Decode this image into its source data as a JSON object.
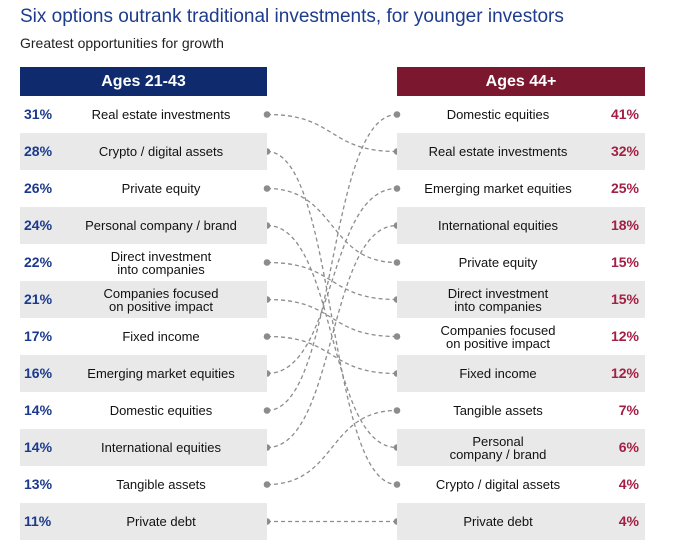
{
  "title": "Six options outrank traditional investments, for younger investors",
  "subtitle": "Greatest opportunities for growth",
  "colors": {
    "left_header": "#0f2b6e",
    "right_header": "#7b1830",
    "left_value": "#1b3a8c",
    "right_value": "#a31f43",
    "connector": "#8c8c8c"
  },
  "chart_data": {
    "type": "table",
    "title": "Six options outrank traditional investments, for younger investors",
    "subtitle": "Greatest opportunities for growth",
    "left": {
      "header": "Ages 21-43",
      "rows": [
        {
          "value": 31,
          "display": "31%",
          "label": "Real estate investments"
        },
        {
          "value": 28,
          "display": "28%",
          "label": "Crypto / digital assets"
        },
        {
          "value": 26,
          "display": "26%",
          "label": "Private equity"
        },
        {
          "value": 24,
          "display": "24%",
          "label": "Personal company / brand"
        },
        {
          "value": 22,
          "display": "22%",
          "label": "Direct investment\ninto companies"
        },
        {
          "value": 21,
          "display": "21%",
          "label": "Companies focused\non positive impact"
        },
        {
          "value": 17,
          "display": "17%",
          "label": "Fixed income"
        },
        {
          "value": 16,
          "display": "16%",
          "label": "Emerging market equities"
        },
        {
          "value": 14,
          "display": "14%",
          "label": "Domestic equities"
        },
        {
          "value": 14,
          "display": "14%",
          "label": "International equities"
        },
        {
          "value": 13,
          "display": "13%",
          "label": "Tangible assets"
        },
        {
          "value": 11,
          "display": "11%",
          "label": "Private debt"
        }
      ]
    },
    "right": {
      "header": "Ages 44+",
      "rows": [
        {
          "value": 41,
          "display": "41%",
          "label": "Domestic equities"
        },
        {
          "value": 32,
          "display": "32%",
          "label": "Real estate investments"
        },
        {
          "value": 25,
          "display": "25%",
          "label": "Emerging market equities"
        },
        {
          "value": 18,
          "display": "18%",
          "label": "International equities"
        },
        {
          "value": 15,
          "display": "15%",
          "label": "Private equity"
        },
        {
          "value": 15,
          "display": "15%",
          "label": "Direct investment\ninto companies"
        },
        {
          "value": 12,
          "display": "12%",
          "label": "Companies focused\non positive impact"
        },
        {
          "value": 12,
          "display": "12%",
          "label": "Fixed income"
        },
        {
          "value": 7,
          "display": "7%",
          "label": "Tangible assets"
        },
        {
          "value": 6,
          "display": "6%",
          "label": "Personal\ncompany / brand"
        },
        {
          "value": 4,
          "display": "4%",
          "label": "Crypto / digital assets"
        },
        {
          "value": 4,
          "display": "4%",
          "label": "Private debt"
        }
      ]
    },
    "links": [
      [
        0,
        1
      ],
      [
        1,
        10
      ],
      [
        2,
        4
      ],
      [
        3,
        9
      ],
      [
        4,
        5
      ],
      [
        5,
        6
      ],
      [
        6,
        7
      ],
      [
        7,
        2
      ],
      [
        8,
        0
      ],
      [
        9,
        3
      ],
      [
        10,
        8
      ],
      [
        11,
        11
      ]
    ]
  }
}
